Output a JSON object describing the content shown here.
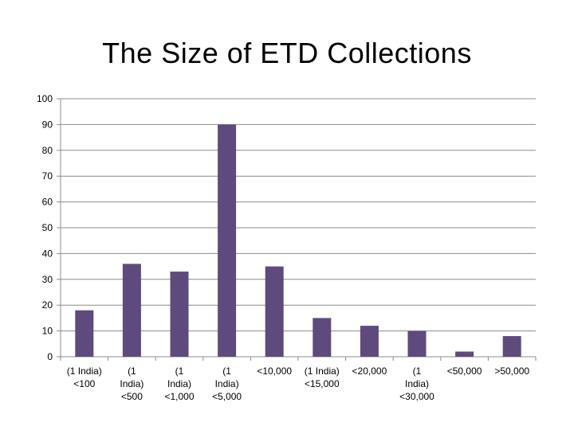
{
  "chart_data": {
    "type": "bar",
    "title": "The Size of ETD Collections",
    "xlabel": "",
    "ylabel": "",
    "ylim": [
      0,
      100
    ],
    "yticks": [
      0,
      10,
      20,
      30,
      40,
      50,
      60,
      70,
      80,
      90,
      100
    ],
    "grid": true,
    "legend": "none",
    "bar_color": "#5e4a7d",
    "categories": [
      "(1 India) <100",
      "(1 India) <500",
      "(1 India) <1,000",
      "(1 India) <5,000",
      "<10,000",
      "(1 India) <15,000",
      "<20,000",
      "(1 India) <30,000",
      "<50,000",
      ">50,000"
    ],
    "category_label_lines": [
      [
        "(1 India)",
        "<100"
      ],
      [
        "(1",
        "India)",
        "<500"
      ],
      [
        "(1",
        "India)",
        "<1,000"
      ],
      [
        "(1",
        "India)",
        "<5,000"
      ],
      [
        "<10,000"
      ],
      [
        "(1 India)",
        "<15,000"
      ],
      [
        "<20,000"
      ],
      [
        "(1",
        "India)",
        "<30,000"
      ],
      [
        "<50,000"
      ],
      [
        ">50,000"
      ]
    ],
    "values": [
      18,
      36,
      33,
      90,
      35,
      15,
      12,
      10,
      2,
      8
    ]
  }
}
